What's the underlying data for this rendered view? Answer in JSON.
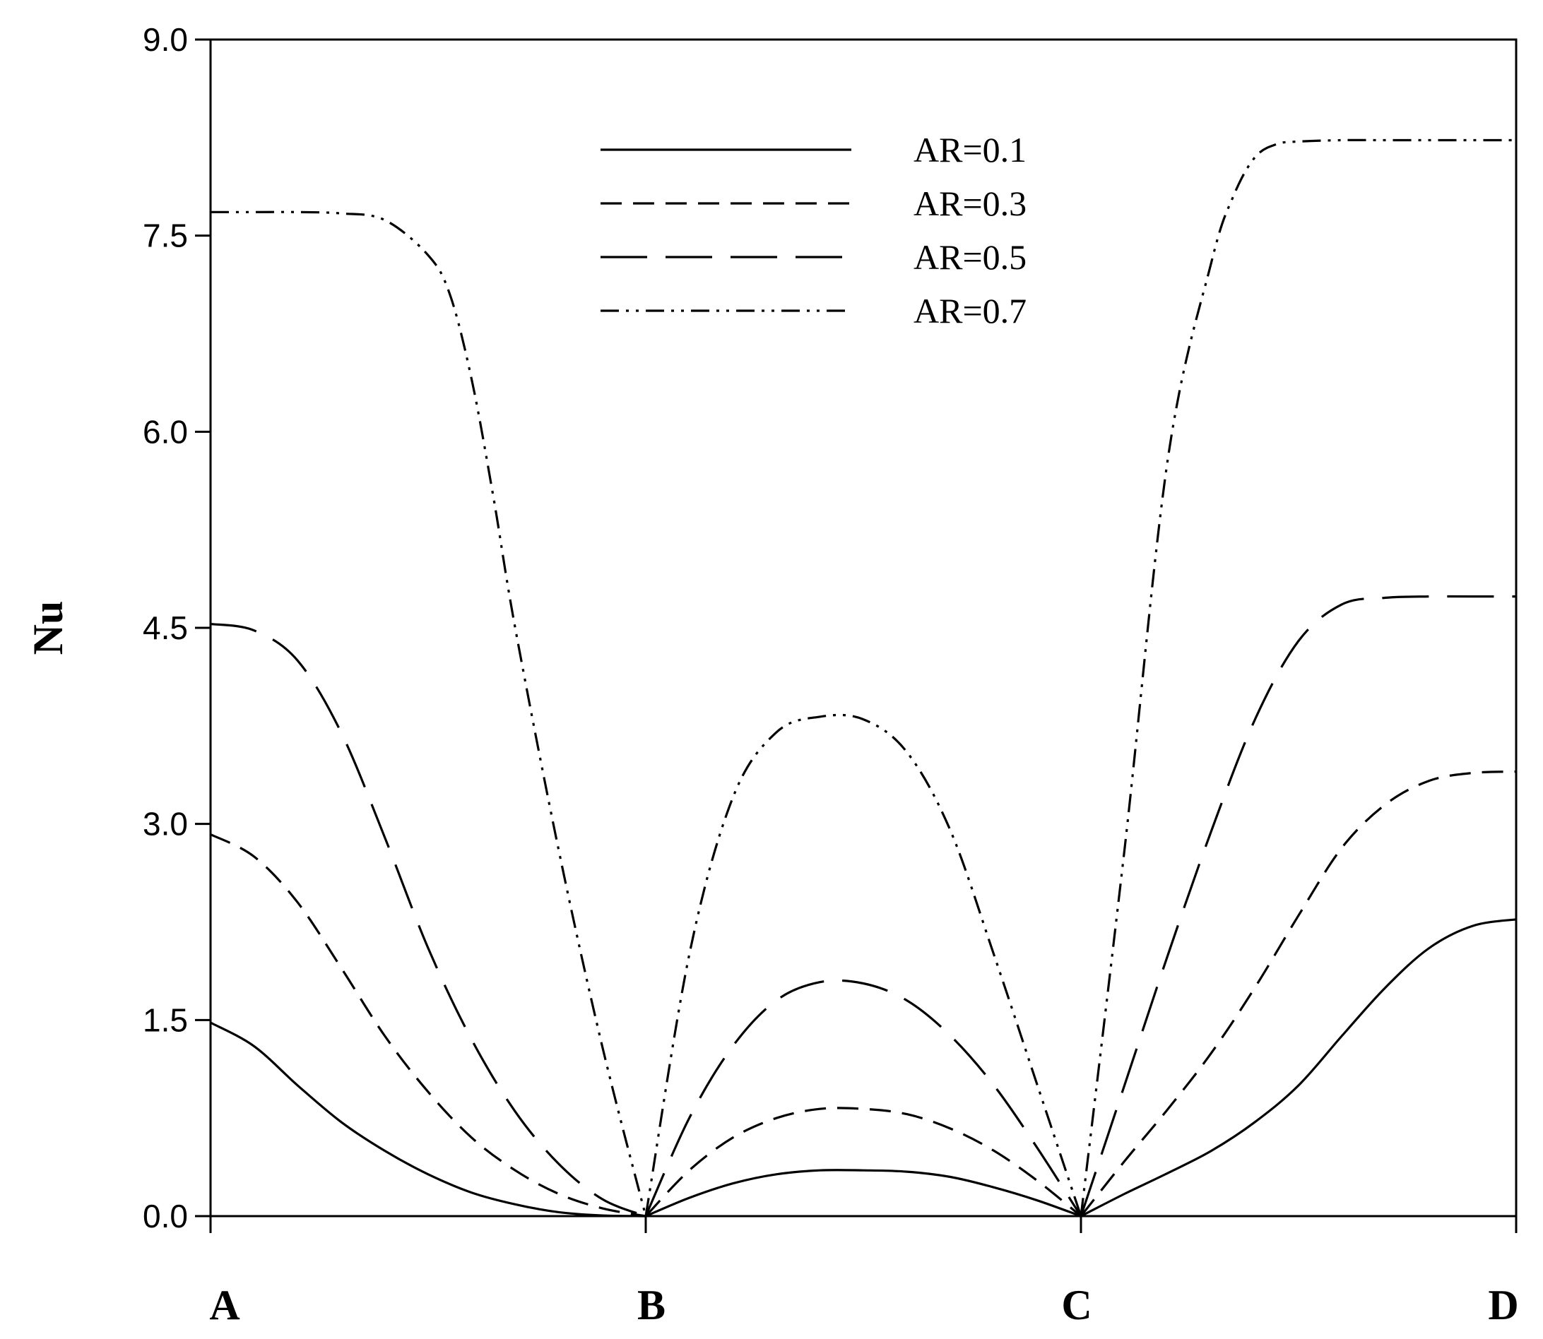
{
  "chart_data": {
    "type": "line",
    "xlabel": "",
    "ylabel": "Nu",
    "ylim": [
      0,
      9
    ],
    "xlim": [
      0,
      3
    ],
    "x_categories": [
      {
        "label": "A",
        "position": 0
      },
      {
        "label": "B",
        "position": 1
      },
      {
        "label": "C",
        "position": 2
      },
      {
        "label": "D",
        "position": 3
      }
    ],
    "yticks": [
      "0.0",
      "1.5",
      "3.0",
      "4.5",
      "6.0",
      "7.5",
      "9.0"
    ],
    "ytick_values": [
      0,
      1.5,
      3.0,
      4.5,
      6.0,
      7.5,
      9.0
    ],
    "grid": false,
    "legend_position": "top-center",
    "series": [
      {
        "name": "AR=0.1",
        "style": "solid",
        "x": [
          0,
          0.1,
          0.2,
          0.3,
          0.4,
          0.5,
          0.6,
          0.7,
          0.8,
          0.9,
          1.0,
          1.1,
          1.2,
          1.3,
          1.4,
          1.5,
          1.6,
          1.7,
          1.8,
          1.9,
          2.0,
          2.1,
          2.2,
          2.3,
          2.4,
          2.5,
          2.6,
          2.7,
          2.8,
          2.9,
          3.0
        ],
        "y": [
          1.48,
          1.3,
          1.0,
          0.72,
          0.5,
          0.32,
          0.18,
          0.09,
          0.03,
          0.005,
          0.0,
          0.14,
          0.25,
          0.32,
          0.35,
          0.35,
          0.34,
          0.3,
          0.22,
          0.12,
          0.0,
          0.17,
          0.33,
          0.5,
          0.72,
          1.0,
          1.38,
          1.75,
          2.05,
          2.22,
          2.27
        ]
      },
      {
        "name": "AR=0.3",
        "style": "short-dash",
        "x": [
          0,
          0.1,
          0.2,
          0.3,
          0.4,
          0.5,
          0.6,
          0.7,
          0.8,
          0.9,
          1.0,
          1.1,
          1.2,
          1.3,
          1.4,
          1.5,
          1.6,
          1.7,
          1.8,
          1.9,
          2.0,
          2.1,
          2.2,
          2.3,
          2.4,
          2.5,
          2.6,
          2.7,
          2.8,
          2.9,
          3.0
        ],
        "y": [
          2.92,
          2.75,
          2.4,
          1.9,
          1.38,
          0.95,
          0.6,
          0.35,
          0.17,
          0.06,
          0.0,
          0.35,
          0.6,
          0.75,
          0.82,
          0.82,
          0.78,
          0.67,
          0.5,
          0.27,
          0.0,
          0.42,
          0.82,
          1.25,
          1.75,
          2.3,
          2.82,
          3.15,
          3.33,
          3.39,
          3.4
        ]
      },
      {
        "name": "AR=0.5",
        "style": "long-dash",
        "x": [
          0,
          0.1,
          0.2,
          0.3,
          0.4,
          0.5,
          0.6,
          0.7,
          0.8,
          0.9,
          1.0,
          1.1,
          1.2,
          1.3,
          1.4,
          1.5,
          1.6,
          1.7,
          1.8,
          1.9,
          2.0,
          2.1,
          2.2,
          2.3,
          2.4,
          2.5,
          2.6,
          2.7,
          2.8,
          2.9,
          3.0
        ],
        "y": [
          4.53,
          4.48,
          4.25,
          3.7,
          2.9,
          2.05,
          1.35,
          0.8,
          0.4,
          0.13,
          0.0,
          0.75,
          1.3,
          1.65,
          1.79,
          1.78,
          1.65,
          1.38,
          1.0,
          0.52,
          0.0,
          1.0,
          2.0,
          2.95,
          3.8,
          4.4,
          4.68,
          4.73,
          4.74,
          4.74,
          4.74
        ]
      },
      {
        "name": "AR=0.7",
        "style": "dash-dot-dot",
        "x": [
          0,
          0.1,
          0.2,
          0.3,
          0.4,
          0.5,
          0.55,
          0.6,
          0.65,
          0.7,
          0.8,
          0.9,
          1.0,
          1.1,
          1.2,
          1.3,
          1.4,
          1.5,
          1.6,
          1.7,
          1.8,
          1.9,
          2.0,
          2.1,
          2.2,
          2.3,
          2.35,
          2.4,
          2.45,
          2.5,
          2.6,
          2.7,
          2.8,
          2.9,
          3.0
        ],
        "y": [
          7.68,
          7.68,
          7.68,
          7.67,
          7.62,
          7.35,
          7.05,
          6.4,
          5.5,
          4.5,
          2.8,
          1.3,
          0.0,
          2.0,
          3.2,
          3.7,
          3.82,
          3.8,
          3.55,
          2.95,
          2.0,
          1.0,
          0.0,
          2.8,
          5.8,
          7.3,
          7.8,
          8.1,
          8.2,
          8.22,
          8.23,
          8.23,
          8.23,
          8.23,
          8.23
        ]
      }
    ]
  }
}
